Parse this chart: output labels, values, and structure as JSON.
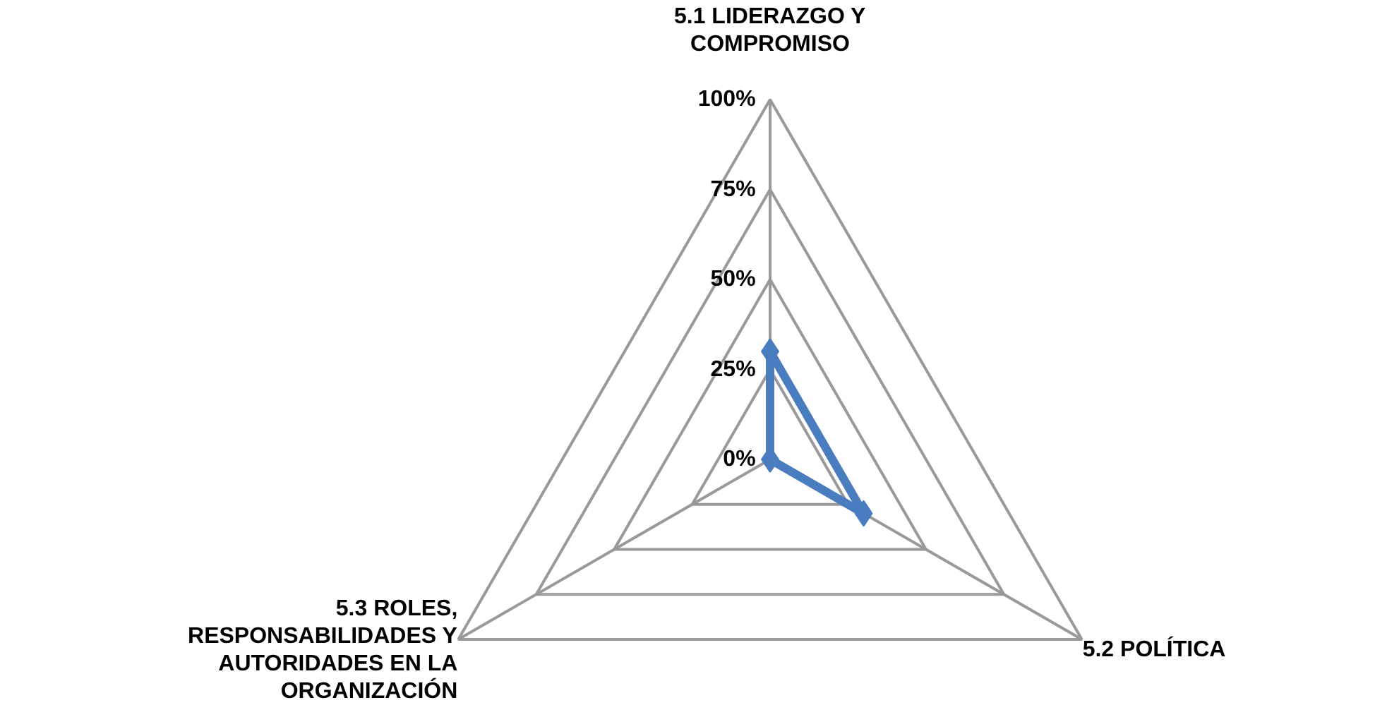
{
  "chart_data": {
    "type": "radar",
    "categories": [
      "5.1 LIDERAZGO Y COMPROMISO",
      "5.2 POLÍTICA",
      "5.3 ROLES, RESPONSABILIDADES Y AUTORIDADES EN LA ORGANIZACIÓN"
    ],
    "series": [
      {
        "color": "#4a7cc0",
        "values": [
          30,
          30,
          0
        ]
      }
    ],
    "ylim": [
      0,
      100
    ],
    "yticks": [
      {
        "value": 0,
        "label": "0%"
      },
      {
        "value": 25,
        "label": "25%"
      },
      {
        "value": 50,
        "label": "50%"
      },
      {
        "value": 75,
        "label": "75%"
      },
      {
        "value": 100,
        "label": "100%"
      }
    ],
    "grid": true,
    "marker": "diamond",
    "line_style": "solid"
  }
}
